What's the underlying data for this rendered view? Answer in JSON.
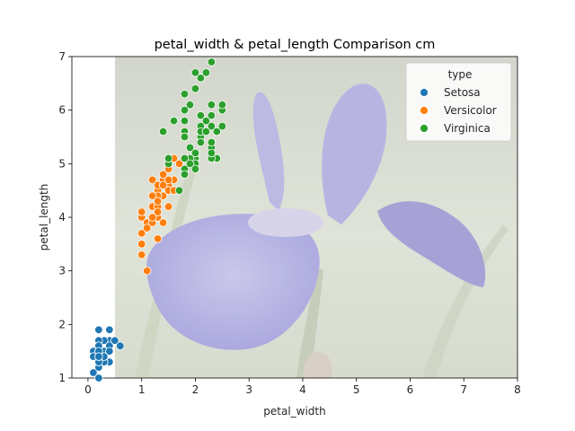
{
  "chart_data": {
    "type": "scatter",
    "title": "petal_width & petal_length Comparison cm",
    "xlabel": "petal_width",
    "ylabel": "petal_length",
    "xlim": [
      -0.3,
      8
    ],
    "ylim": [
      1,
      7
    ],
    "xticks": [
      "0",
      "1",
      "2",
      "3",
      "4",
      "5",
      "6",
      "7",
      "8"
    ],
    "yticks": [
      "1",
      "2",
      "3",
      "4",
      "5",
      "6",
      "7"
    ],
    "grid": false,
    "legend": {
      "title": "type",
      "placement": "top-right"
    },
    "background_image": "iris-flower-photo",
    "series": [
      {
        "name": "Setosa",
        "color": "#1f77b4",
        "points": [
          [
            0.2,
            1.4
          ],
          [
            0.2,
            1.4
          ],
          [
            0.2,
            1.3
          ],
          [
            0.2,
            1.5
          ],
          [
            0.2,
            1.4
          ],
          [
            0.4,
            1.7
          ],
          [
            0.3,
            1.4
          ],
          [
            0.2,
            1.5
          ],
          [
            0.2,
            1.4
          ],
          [
            0.1,
            1.5
          ],
          [
            0.2,
            1.5
          ],
          [
            0.2,
            1.6
          ],
          [
            0.1,
            1.4
          ],
          [
            0.1,
            1.1
          ],
          [
            0.2,
            1.2
          ],
          [
            0.4,
            1.5
          ],
          [
            0.4,
            1.3
          ],
          [
            0.3,
            1.4
          ],
          [
            0.3,
            1.7
          ],
          [
            0.3,
            1.5
          ],
          [
            0.2,
            1.7
          ],
          [
            0.4,
            1.5
          ],
          [
            0.2,
            1.0
          ],
          [
            0.5,
            1.7
          ],
          [
            0.2,
            1.9
          ],
          [
            0.2,
            1.6
          ],
          [
            0.4,
            1.6
          ],
          [
            0.2,
            1.5
          ],
          [
            0.2,
            1.4
          ],
          [
            0.2,
            1.6
          ],
          [
            0.2,
            1.6
          ],
          [
            0.4,
            1.5
          ],
          [
            0.1,
            1.5
          ],
          [
            0.2,
            1.4
          ],
          [
            0.2,
            1.5
          ],
          [
            0.2,
            1.2
          ],
          [
            0.2,
            1.3
          ],
          [
            0.1,
            1.4
          ],
          [
            0.2,
            1.3
          ],
          [
            0.2,
            1.5
          ],
          [
            0.3,
            1.3
          ],
          [
            0.3,
            1.3
          ],
          [
            0.2,
            1.3
          ],
          [
            0.6,
            1.6
          ],
          [
            0.4,
            1.9
          ],
          [
            0.3,
            1.4
          ],
          [
            0.2,
            1.6
          ],
          [
            0.2,
            1.4
          ],
          [
            0.2,
            1.5
          ],
          [
            0.2,
            1.4
          ]
        ]
      },
      {
        "name": "Versicolor",
        "color": "#ff7f0e",
        "points": [
          [
            1.4,
            4.7
          ],
          [
            1.5,
            4.5
          ],
          [
            1.5,
            4.9
          ],
          [
            1.3,
            4.0
          ],
          [
            1.5,
            4.6
          ],
          [
            1.3,
            4.5
          ],
          [
            1.6,
            4.7
          ],
          [
            1.0,
            3.3
          ],
          [
            1.3,
            4.6
          ],
          [
            1.4,
            3.9
          ],
          [
            1.0,
            3.5
          ],
          [
            1.5,
            4.2
          ],
          [
            1.0,
            4.0
          ],
          [
            1.4,
            4.7
          ],
          [
            1.3,
            3.6
          ],
          [
            1.4,
            4.4
          ],
          [
            1.5,
            4.5
          ],
          [
            1.0,
            4.1
          ],
          [
            1.5,
            4.5
          ],
          [
            1.1,
            3.9
          ],
          [
            1.8,
            4.8
          ],
          [
            1.3,
            4.0
          ],
          [
            1.5,
            4.9
          ],
          [
            1.2,
            4.7
          ],
          [
            1.3,
            4.3
          ],
          [
            1.4,
            4.4
          ],
          [
            1.4,
            4.8
          ],
          [
            1.7,
            5.0
          ],
          [
            1.5,
            4.5
          ],
          [
            1.0,
            3.5
          ],
          [
            1.1,
            3.8
          ],
          [
            1.0,
            3.7
          ],
          [
            1.2,
            3.9
          ],
          [
            1.6,
            5.1
          ],
          [
            1.5,
            4.5
          ],
          [
            1.6,
            4.5
          ],
          [
            1.5,
            4.7
          ],
          [
            1.3,
            4.4
          ],
          [
            1.3,
            4.1
          ],
          [
            1.3,
            4.0
          ],
          [
            1.2,
            4.4
          ],
          [
            1.4,
            4.6
          ],
          [
            1.2,
            4.0
          ],
          [
            1.0,
            3.3
          ],
          [
            1.3,
            4.2
          ],
          [
            1.2,
            4.2
          ],
          [
            1.3,
            4.2
          ],
          [
            1.3,
            4.3
          ],
          [
            1.1,
            3.0
          ],
          [
            1.3,
            4.1
          ]
        ]
      },
      {
        "name": "Virginica",
        "color": "#2ca02c",
        "points": [
          [
            2.5,
            6.0
          ],
          [
            1.9,
            5.1
          ],
          [
            2.1,
            5.9
          ],
          [
            1.8,
            5.6
          ],
          [
            2.2,
            5.8
          ],
          [
            2.1,
            6.6
          ],
          [
            1.7,
            4.5
          ],
          [
            1.8,
            6.3
          ],
          [
            1.8,
            5.8
          ],
          [
            2.5,
            6.1
          ],
          [
            2.0,
            5.1
          ],
          [
            1.9,
            5.3
          ],
          [
            2.1,
            5.5
          ],
          [
            2.0,
            5.0
          ],
          [
            2.4,
            5.1
          ],
          [
            2.3,
            5.3
          ],
          [
            1.8,
            5.5
          ],
          [
            2.2,
            6.7
          ],
          [
            2.3,
            6.9
          ],
          [
            1.5,
            5.0
          ],
          [
            2.3,
            5.7
          ],
          [
            2.0,
            4.9
          ],
          [
            2.0,
            6.7
          ],
          [
            1.8,
            4.9
          ],
          [
            2.1,
            5.7
          ],
          [
            1.8,
            6.0
          ],
          [
            1.8,
            4.8
          ],
          [
            1.8,
            4.9
          ],
          [
            2.1,
            5.6
          ],
          [
            1.6,
            5.8
          ],
          [
            1.9,
            6.1
          ],
          [
            2.0,
            6.4
          ],
          [
            2.2,
            5.6
          ],
          [
            1.5,
            5.1
          ],
          [
            1.4,
            5.6
          ],
          [
            2.3,
            6.1
          ],
          [
            2.4,
            5.6
          ],
          [
            1.8,
            5.5
          ],
          [
            1.8,
            4.8
          ],
          [
            2.1,
            5.4
          ],
          [
            2.4,
            5.6
          ],
          [
            2.3,
            5.1
          ],
          [
            1.9,
            5.1
          ],
          [
            2.3,
            5.9
          ],
          [
            2.5,
            5.7
          ],
          [
            2.3,
            5.2
          ],
          [
            1.9,
            5.0
          ],
          [
            2.0,
            5.2
          ],
          [
            2.3,
            5.4
          ],
          [
            1.8,
            5.1
          ]
        ]
      }
    ]
  }
}
